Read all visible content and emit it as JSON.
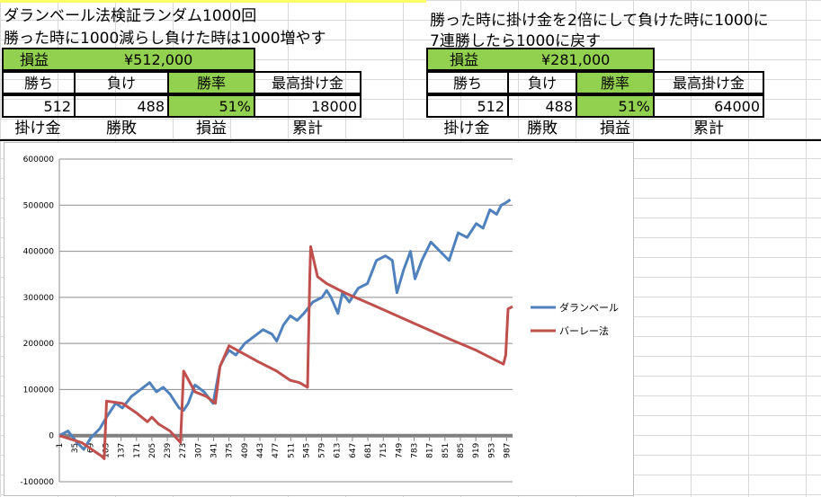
{
  "left": {
    "title1": "ダランベール法検証ランダム1000回",
    "title2": "勝った時に1000減らし負けた時は1000増やす",
    "profit_label": "損益",
    "profit_value": "¥512,000",
    "headers": [
      "勝ち",
      "負け",
      "勝率",
      "最高掛け金"
    ],
    "values": [
      "512",
      "488",
      "51%",
      "18000"
    ],
    "col_headers": [
      "掛け金",
      "勝敗",
      "損益",
      "累計"
    ]
  },
  "right": {
    "title1": "勝った時に掛け金を2倍にして負けた時に1000に",
    "title2": "7連勝したら1000に戻す",
    "profit_label": "損益",
    "profit_value": "¥281,000",
    "headers": [
      "勝ち",
      "負け",
      "勝率",
      "最高掛け金"
    ],
    "values": [
      "512",
      "488",
      "51%",
      "64000"
    ],
    "col_headers": [
      "掛け金",
      "勝敗",
      "損益",
      "累計"
    ]
  },
  "chart_data": {
    "type": "line",
    "title": "",
    "xlabel": "",
    "ylabel": "",
    "ylim": [
      -100000,
      600000
    ],
    "yticks": [
      600000,
      500000,
      400000,
      300000,
      200000,
      100000,
      0,
      -100000
    ],
    "xticks": [
      1,
      35,
      69,
      103,
      137,
      171,
      205,
      239,
      273,
      307,
      341,
      375,
      409,
      443,
      477,
      511,
      545,
      579,
      613,
      647,
      681,
      715,
      749,
      783,
      817,
      851,
      885,
      919,
      953,
      987
    ],
    "xlim": [
      1,
      1000
    ],
    "grid": "horizontal",
    "legend_position": "right",
    "series": [
      {
        "name": "ダランベール",
        "color": "#4f81bd",
        "x": [
          1,
          20,
          40,
          55,
          70,
          90,
          105,
          115,
          125,
          140,
          160,
          180,
          200,
          215,
          230,
          245,
          255,
          265,
          275,
          285,
          300,
          320,
          340,
          355,
          365,
          375,
          390,
          410,
          430,
          450,
          470,
          480,
          495,
          510,
          525,
          540,
          560,
          580,
          590,
          600,
          615,
          625,
          640,
          660,
          680,
          700,
          720,
          735,
          745,
          760,
          775,
          785,
          800,
          820,
          840,
          860,
          880,
          900,
          920,
          935,
          950,
          965,
          975,
          985,
          995
        ],
        "y": [
          0,
          10000,
          -15000,
          -30000,
          -5000,
          15000,
          40000,
          55000,
          70000,
          60000,
          85000,
          100000,
          115000,
          95000,
          105000,
          90000,
          75000,
          60000,
          55000,
          70000,
          110000,
          95000,
          70000,
          150000,
          170000,
          185000,
          175000,
          200000,
          215000,
          230000,
          220000,
          205000,
          240000,
          260000,
          250000,
          265000,
          290000,
          300000,
          315000,
          300000,
          265000,
          310000,
          290000,
          320000,
          330000,
          380000,
          390000,
          380000,
          310000,
          360000,
          400000,
          340000,
          380000,
          420000,
          400000,
          380000,
          440000,
          430000,
          460000,
          450000,
          490000,
          480000,
          500000,
          505000,
          512000
        ]
      },
      {
        "name": "バーレー法",
        "color": "#c0504d",
        "x": [
          1,
          50,
          95,
          100,
          105,
          140,
          170,
          195,
          205,
          220,
          245,
          268,
          275,
          300,
          325,
          345,
          355,
          375,
          440,
          480,
          510,
          530,
          548,
          551,
          553,
          555,
          570,
          590,
          630,
          700,
          780,
          860,
          920,
          980,
          985,
          990,
          1000
        ],
        "y": [
          0,
          -15000,
          -45000,
          -50000,
          75000,
          70000,
          50000,
          30000,
          40000,
          25000,
          10000,
          -15000,
          140000,
          95000,
          85000,
          70000,
          150000,
          195000,
          160000,
          140000,
          120000,
          115000,
          105000,
          250000,
          345000,
          410000,
          345000,
          330000,
          310000,
          280000,
          245000,
          210000,
          185000,
          155000,
          175000,
          275000,
          280000
        ]
      }
    ]
  }
}
